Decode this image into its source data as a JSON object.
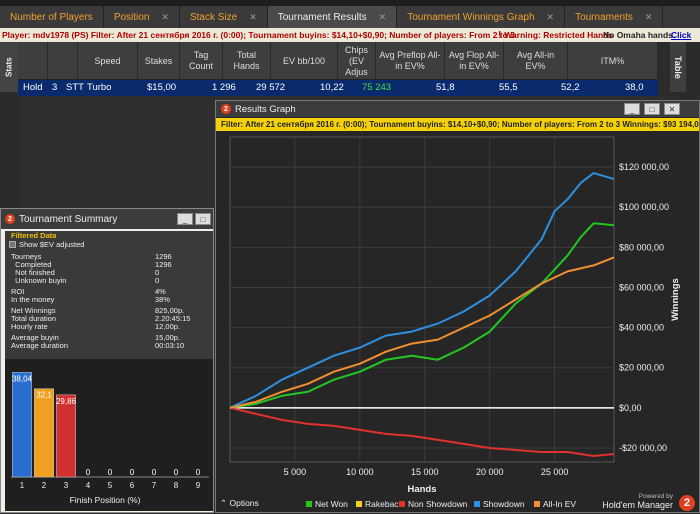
{
  "tabs": [
    {
      "label": "Number of Players",
      "active": false,
      "closable": false
    },
    {
      "label": "Position",
      "active": false,
      "closable": true
    },
    {
      "label": "Stack Size",
      "active": false,
      "closable": true
    },
    {
      "label": "Tournament Results",
      "active": true,
      "closable": true
    },
    {
      "label": "Tournament Winnings Graph",
      "active": false,
      "closable": true
    },
    {
      "label": "Tournaments",
      "active": false,
      "closable": true
    }
  ],
  "filterbar": {
    "text": "Player: mdv1978 (PS)   Filter: After 21 сентября 2016 г. (0:00); Tournament buyins: $14,10+$0,90; Number of players: From 2 to 3",
    "warning": "Warning: Restricted Hands",
    "omaha": "No Omaha hands.",
    "click": "Click"
  },
  "side": {
    "stats": "Stats",
    "table": "Table"
  },
  "grid": {
    "headers": [
      "Speed",
      "Stakes",
      "Tag Count",
      "Total Hands",
      "EV bb/100",
      "Chips (EV Adjus",
      "Avg Preflop All-in EV%",
      "Avg Flop All-in EV%",
      "Avg All-in EV%",
      "ITM%"
    ],
    "row": {
      "game": "Hold",
      "players": "3",
      "type": "STT",
      "speed": "Turbo",
      "stakes": "$15,00",
      "tag_count": "1 296",
      "total_hands": "29 572",
      "ev_bb100": "10,22",
      "chips_ev": "75 243",
      "avg_preflop": "51,8",
      "avg_flop": "55,5",
      "avg_allin": "52,2",
      "itm": "38,0"
    }
  },
  "summary": {
    "title": "Tournament Summary",
    "filtered": "Filtered Data",
    "checkbox": "Show $EV adjusted",
    "rows": [
      {
        "label": "Tourneys",
        "value": "1296"
      },
      {
        "label": "  Completed",
        "value": "1296"
      },
      {
        "label": "  Not finished",
        "value": "0"
      },
      {
        "label": "  Unknown buyin",
        "value": "0"
      },
      {
        "label": "ROI",
        "value": "4%"
      },
      {
        "label": "In the money",
        "value": "38%"
      },
      {
        "label": "Net Winnings",
        "value": "825,00р."
      },
      {
        "label": "Total duration",
        "value": "2.20:45:15"
      },
      {
        "label": "Hourly rate",
        "value": "12,00р."
      },
      {
        "label": "Average buyin",
        "value": "15,00р."
      },
      {
        "label": "Average duration",
        "value": "00:03:10"
      }
    ],
    "chart_data": {
      "type": "bar",
      "categories": [
        "1",
        "2",
        "3",
        "4",
        "5",
        "6",
        "7",
        "8",
        "9"
      ],
      "values": [
        38.04,
        32.1,
        29.86,
        0,
        0,
        0,
        0,
        0,
        0
      ],
      "value_labels": [
        "38,04",
        "32,1",
        "29,86",
        "0",
        "0",
        "0",
        "0",
        "0",
        "0"
      ],
      "colors": [
        "#2a6fd0",
        "#f0a020",
        "#d03030"
      ],
      "xlabel": "Finish Position (%)",
      "ylim": [
        0,
        40
      ]
    }
  },
  "results": {
    "title": "Results Graph",
    "filter": "Filter: After 21 сентября 2016 г. (0:00); Tournament buyins: $14,10+$0,90; Number of players: From 2 to 3  Winnings: $93 194,00",
    "options": "Options",
    "powered": "Powered by",
    "brand": "Hold'em Manager",
    "chart_data": {
      "type": "line",
      "xlabel": "Hands",
      "ylabel": "Winnings",
      "xlim": [
        0,
        29572
      ],
      "ylim": [
        -27000,
        135000
      ],
      "xticks": [
        5000,
        10000,
        15000,
        20000,
        25000
      ],
      "xtick_labels": [
        "5 000",
        "10 000",
        "15 000",
        "20 000",
        "25 000"
      ],
      "yticks": [
        -20000,
        0,
        20000,
        40000,
        60000,
        80000,
        100000,
        120000
      ],
      "ytick_labels": [
        "-$20 000,00",
        "$0,00",
        "$20 000,00",
        "$40 000,00",
        "$60 000,00",
        "$80 000,00",
        "$100 000,00",
        "$120 000,00"
      ],
      "series": [
        {
          "name": "Net Won",
          "color": "#22c822",
          "x": [
            0,
            2000,
            4000,
            6000,
            8000,
            10000,
            12000,
            14000,
            16000,
            18000,
            20000,
            22000,
            24000,
            26000,
            27000,
            28000,
            29572
          ],
          "y": [
            0,
            2000,
            6000,
            8000,
            14000,
            18000,
            24000,
            26000,
            24000,
            30000,
            38000,
            52000,
            62000,
            76000,
            85000,
            92000,
            91000
          ]
        },
        {
          "name": "Rakeback",
          "color": "#f0d020",
          "x": [],
          "y": []
        },
        {
          "name": "Non Showdown",
          "color": "#e03030",
          "x": [
            0,
            2000,
            4000,
            6000,
            8000,
            10000,
            12000,
            14000,
            16000,
            18000,
            20000,
            22000,
            24000,
            26000,
            28000,
            29572
          ],
          "y": [
            0,
            -3000,
            -6000,
            -8000,
            -9000,
            -11000,
            -13000,
            -14000,
            -16000,
            -18000,
            -20000,
            -21000,
            -22000,
            -22000,
            -24000,
            -23000
          ]
        },
        {
          "name": "Showdown",
          "color": "#3090e0",
          "x": [
            0,
            2000,
            4000,
            6000,
            8000,
            10000,
            12000,
            14000,
            16000,
            18000,
            20000,
            22000,
            24000,
            25000,
            26000,
            27000,
            28000,
            29572
          ],
          "y": [
            0,
            6000,
            14000,
            20000,
            26000,
            30000,
            36000,
            38000,
            42000,
            48000,
            56000,
            68000,
            84000,
            98000,
            104000,
            112000,
            117000,
            114000
          ]
        },
        {
          "name": "All-In EV",
          "color": "#f09030",
          "x": [
            0,
            2000,
            4000,
            6000,
            8000,
            10000,
            12000,
            14000,
            16000,
            18000,
            20000,
            22000,
            24000,
            26000,
            28000,
            29572
          ],
          "y": [
            0,
            3000,
            8000,
            12000,
            18000,
            22000,
            28000,
            32000,
            34000,
            40000,
            46000,
            54000,
            62000,
            68000,
            71000,
            75000
          ]
        }
      ]
    }
  }
}
